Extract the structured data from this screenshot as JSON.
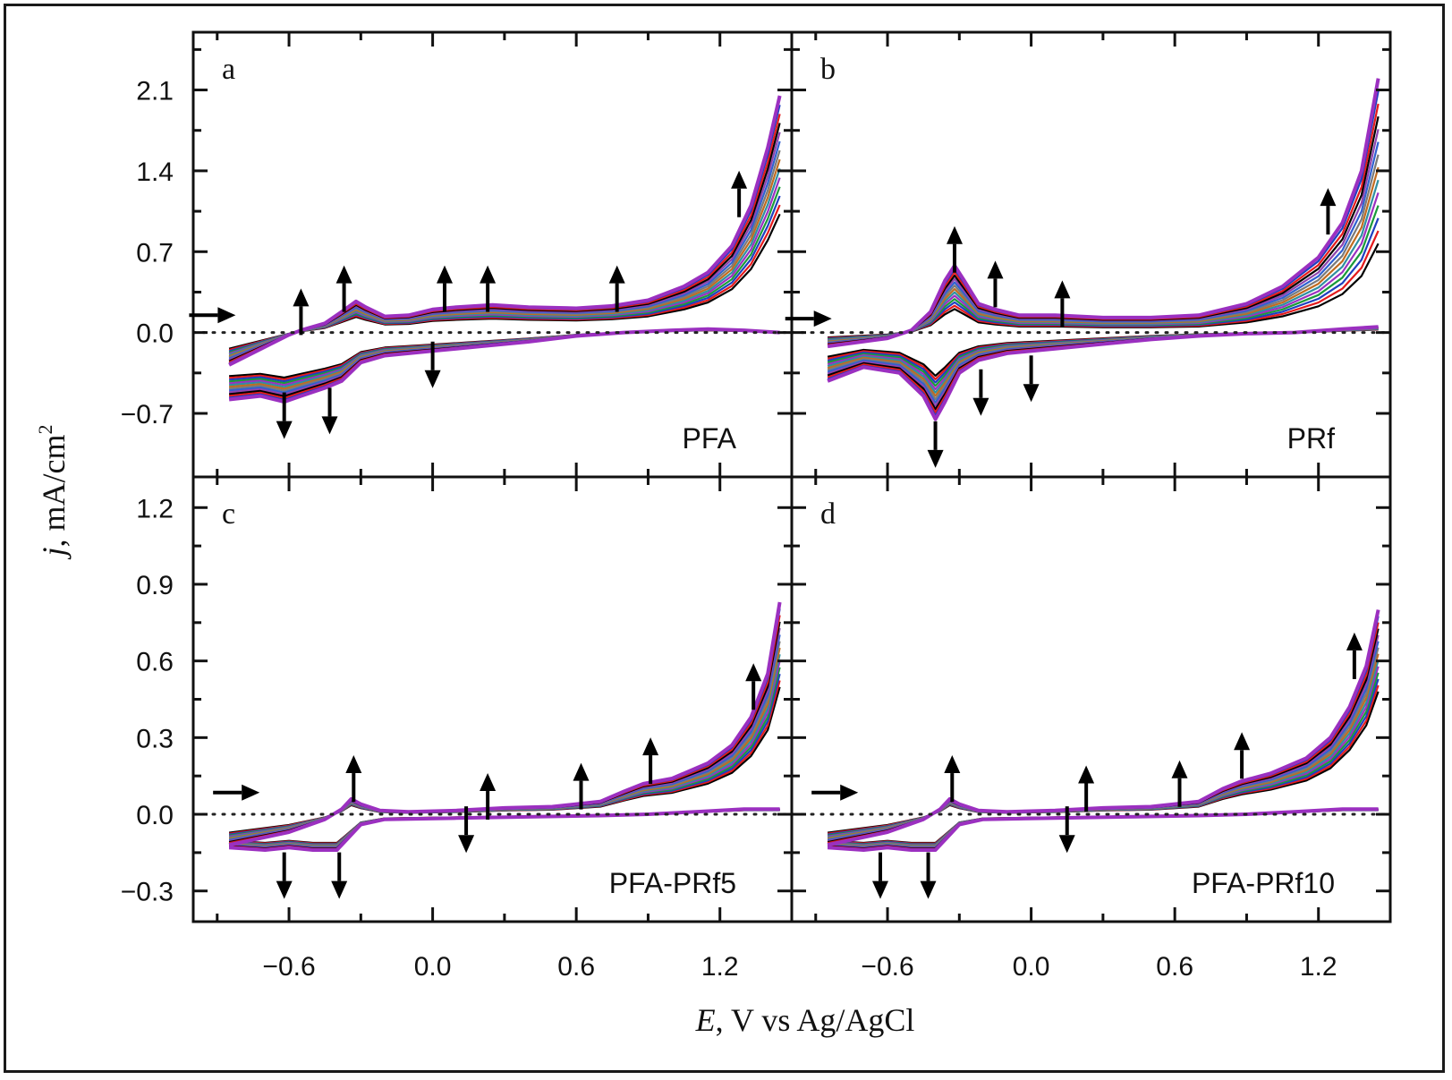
{
  "chart_data": {
    "type": "line",
    "xlabel": {
      "symbol": "E",
      "rest": ", V vs Ag/AgCl"
    },
    "ylabel": {
      "symbol": "j",
      "rest": ", mA/cm",
      "sup": "2"
    },
    "x_ticks": [
      -0.6,
      0.0,
      0.6,
      1.2
    ],
    "x_tick_labels": [
      "−0.6",
      "0.0",
      "0.6",
      "1.2"
    ],
    "xlim": [
      -1.0,
      1.5
    ],
    "series_colors": [
      "#000000",
      "#e41a1c",
      "#1f3fbf",
      "#1a9a3a",
      "#9b30c0",
      "#2f8fa0",
      "#c06b20",
      "#7a7a7a",
      "#3060d0",
      "#8e44ad"
    ],
    "panels": [
      {
        "letter": "a",
        "name": "PFA",
        "ylim": [
          -1.25,
          2.6
        ],
        "y_ticks": [
          -0.7,
          0.0,
          0.7,
          1.4,
          2.1
        ],
        "y_tick_labels": [
          "−0.7",
          "0.0",
          "0.7",
          "1.4",
          "2.1"
        ],
        "baseline": 0.0,
        "n_cycles": 14,
        "anodic": [
          [
            -0.85,
            -0.28
          ],
          [
            -0.6,
            -0.02
          ],
          [
            -0.55,
            0.02
          ],
          [
            -0.45,
            0.08
          ],
          [
            -0.38,
            0.18
          ],
          [
            -0.32,
            0.27
          ],
          [
            -0.28,
            0.22
          ],
          [
            -0.2,
            0.14
          ],
          [
            -0.1,
            0.15
          ],
          [
            0.0,
            0.2
          ],
          [
            0.1,
            0.22
          ],
          [
            0.25,
            0.24
          ],
          [
            0.4,
            0.22
          ],
          [
            0.6,
            0.21
          ],
          [
            0.75,
            0.23
          ],
          [
            0.9,
            0.28
          ],
          [
            1.05,
            0.4
          ],
          [
            1.15,
            0.52
          ],
          [
            1.25,
            0.75
          ],
          [
            1.33,
            1.1
          ],
          [
            1.4,
            1.6
          ],
          [
            1.45,
            2.05
          ]
        ],
        "cathodic": [
          [
            1.45,
            0.0
          ],
          [
            1.3,
            0.02
          ],
          [
            1.15,
            0.03
          ],
          [
            1.0,
            0.02
          ],
          [
            0.8,
            0.0
          ],
          [
            0.6,
            -0.03
          ],
          [
            0.4,
            -0.08
          ],
          [
            0.2,
            -0.12
          ],
          [
            0.0,
            -0.16
          ],
          [
            -0.2,
            -0.2
          ],
          [
            -0.3,
            -0.26
          ],
          [
            -0.38,
            -0.42
          ],
          [
            -0.45,
            -0.48
          ],
          [
            -0.55,
            -0.55
          ],
          [
            -0.62,
            -0.6
          ],
          [
            -0.72,
            -0.55
          ],
          [
            -0.85,
            -0.58
          ]
        ],
        "scale_anodic": [
          0.5,
          1.0
        ],
        "scale_cathodic": [
          0.65,
          1.0
        ],
        "arrows_up": [
          [
            -0.55,
            0.18
          ],
          [
            -0.37,
            0.38
          ],
          [
            0.05,
            0.38
          ],
          [
            0.23,
            0.38
          ],
          [
            0.77,
            0.38
          ],
          [
            1.28,
            1.2
          ]
        ],
        "arrows_down": [
          [
            -0.62,
            -0.72
          ],
          [
            -0.43,
            -0.68
          ],
          [
            0.0,
            -0.28
          ]
        ],
        "arrows_right": [
          [
            -0.92,
            0.15
          ]
        ]
      },
      {
        "letter": "b",
        "name": "PRf",
        "ylim": [
          -1.25,
          2.6
        ],
        "y_ticks": [
          -0.7,
          0.0,
          0.7,
          1.4,
          2.1
        ],
        "y_tick_labels": [
          "",
          "",
          "",
          "",
          ""
        ],
        "baseline": 0.0,
        "n_cycles": 14,
        "anodic": [
          [
            -0.85,
            -0.12
          ],
          [
            -0.6,
            -0.05
          ],
          [
            -0.5,
            0.02
          ],
          [
            -0.42,
            0.18
          ],
          [
            -0.36,
            0.45
          ],
          [
            -0.32,
            0.58
          ],
          [
            -0.28,
            0.45
          ],
          [
            -0.22,
            0.25
          ],
          [
            -0.15,
            0.2
          ],
          [
            -0.05,
            0.15
          ],
          [
            0.1,
            0.15
          ],
          [
            0.3,
            0.13
          ],
          [
            0.5,
            0.13
          ],
          [
            0.7,
            0.15
          ],
          [
            0.9,
            0.25
          ],
          [
            1.05,
            0.4
          ],
          [
            1.2,
            0.65
          ],
          [
            1.3,
            0.95
          ],
          [
            1.38,
            1.4
          ],
          [
            1.45,
            2.2
          ]
        ],
        "cathodic": [
          [
            1.45,
            0.05
          ],
          [
            1.3,
            0.03
          ],
          [
            1.1,
            0.0
          ],
          [
            0.9,
            -0.01
          ],
          [
            0.7,
            -0.03
          ],
          [
            0.5,
            -0.06
          ],
          [
            0.3,
            -0.1
          ],
          [
            0.1,
            -0.14
          ],
          [
            -0.1,
            -0.18
          ],
          [
            -0.22,
            -0.24
          ],
          [
            -0.3,
            -0.35
          ],
          [
            -0.36,
            -0.6
          ],
          [
            -0.4,
            -0.75
          ],
          [
            -0.45,
            -0.55
          ],
          [
            -0.55,
            -0.35
          ],
          [
            -0.7,
            -0.3
          ],
          [
            -0.85,
            -0.42
          ]
        ],
        "scale_anodic": [
          0.35,
          1.0
        ],
        "scale_cathodic": [
          0.5,
          1.0
        ],
        "arrows_up": [
          [
            -0.32,
            0.72
          ],
          [
            -0.15,
            0.42
          ],
          [
            0.13,
            0.25
          ],
          [
            1.24,
            1.05
          ]
        ],
        "arrows_down": [
          [
            -0.4,
            -0.97
          ],
          [
            -0.21,
            -0.52
          ],
          [
            0.0,
            -0.4
          ]
        ],
        "arrows_right": [
          [
            -0.93,
            0.12
          ]
        ]
      },
      {
        "letter": "c",
        "name": "PFA-PRf5",
        "ylim": [
          -0.42,
          1.32
        ],
        "y_ticks": [
          -0.3,
          0.0,
          0.3,
          0.6,
          0.9,
          1.2
        ],
        "y_tick_labels": [
          "−0.3",
          "0.0",
          "0.3",
          "0.6",
          "0.9",
          "1.2"
        ],
        "baseline": 0.0,
        "n_cycles": 14,
        "anodic": [
          [
            -0.85,
            -0.12
          ],
          [
            -0.6,
            -0.07
          ],
          [
            -0.45,
            -0.02
          ],
          [
            -0.38,
            0.02
          ],
          [
            -0.34,
            0.06
          ],
          [
            -0.3,
            0.04
          ],
          [
            -0.22,
            0.015
          ],
          [
            -0.1,
            0.01
          ],
          [
            0.1,
            0.015
          ],
          [
            0.3,
            0.025
          ],
          [
            0.5,
            0.03
          ],
          [
            0.7,
            0.05
          ],
          [
            0.8,
            0.09
          ],
          [
            0.88,
            0.12
          ],
          [
            1.0,
            0.14
          ],
          [
            1.15,
            0.2
          ],
          [
            1.25,
            0.27
          ],
          [
            1.33,
            0.38
          ],
          [
            1.4,
            0.55
          ],
          [
            1.45,
            0.83
          ]
        ],
        "cathodic": [
          [
            1.45,
            0.02
          ],
          [
            1.3,
            0.02
          ],
          [
            1.1,
            0.01
          ],
          [
            0.9,
            0.0
          ],
          [
            0.7,
            -0.005
          ],
          [
            0.4,
            -0.01
          ],
          [
            0.1,
            -0.015
          ],
          [
            -0.2,
            -0.02
          ],
          [
            -0.3,
            -0.04
          ],
          [
            -0.36,
            -0.1
          ],
          [
            -0.4,
            -0.14
          ],
          [
            -0.5,
            -0.14
          ],
          [
            -0.6,
            -0.13
          ],
          [
            -0.7,
            -0.14
          ],
          [
            -0.85,
            -0.13
          ]
        ],
        "scale_anodic": [
          0.6,
          1.0
        ],
        "scale_cathodic": [
          0.8,
          1.0
        ],
        "arrows_up": [
          [
            -0.33,
            0.14
          ],
          [
            0.23,
            0.07
          ],
          [
            0.62,
            0.11
          ],
          [
            0.91,
            0.21
          ],
          [
            1.34,
            0.5
          ]
        ],
        "arrows_down": [
          [
            -0.62,
            -0.24
          ],
          [
            -0.39,
            -0.24
          ],
          [
            0.14,
            -0.06
          ]
        ],
        "arrows_right": [
          [
            -0.82,
            0.085
          ]
        ]
      },
      {
        "letter": "d",
        "name": "PFA-PRf10",
        "ylim": [
          -0.42,
          1.32
        ],
        "y_ticks": [
          -0.3,
          0.0,
          0.3,
          0.6,
          0.9,
          1.2
        ],
        "y_tick_labels": [
          "",
          "",
          "",
          "",
          "",
          ""
        ],
        "baseline": 0.0,
        "n_cycles": 14,
        "anodic": [
          [
            -0.85,
            -0.12
          ],
          [
            -0.6,
            -0.07
          ],
          [
            -0.45,
            -0.02
          ],
          [
            -0.38,
            0.02
          ],
          [
            -0.34,
            0.06
          ],
          [
            -0.3,
            0.04
          ],
          [
            -0.22,
            0.015
          ],
          [
            -0.1,
            0.01
          ],
          [
            0.1,
            0.015
          ],
          [
            0.3,
            0.025
          ],
          [
            0.5,
            0.03
          ],
          [
            0.7,
            0.05
          ],
          [
            0.8,
            0.1
          ],
          [
            0.88,
            0.13
          ],
          [
            1.0,
            0.16
          ],
          [
            1.15,
            0.22
          ],
          [
            1.25,
            0.3
          ],
          [
            1.33,
            0.42
          ],
          [
            1.4,
            0.58
          ],
          [
            1.45,
            0.8
          ]
        ],
        "cathodic": [
          [
            1.45,
            0.02
          ],
          [
            1.3,
            0.02
          ],
          [
            1.1,
            0.01
          ],
          [
            0.9,
            0.0
          ],
          [
            0.7,
            -0.005
          ],
          [
            0.4,
            -0.01
          ],
          [
            0.1,
            -0.015
          ],
          [
            -0.2,
            -0.02
          ],
          [
            -0.3,
            -0.04
          ],
          [
            -0.36,
            -0.1
          ],
          [
            -0.4,
            -0.14
          ],
          [
            -0.5,
            -0.14
          ],
          [
            -0.6,
            -0.13
          ],
          [
            -0.7,
            -0.14
          ],
          [
            -0.85,
            -0.13
          ]
        ],
        "scale_anodic": [
          0.6,
          1.0
        ],
        "scale_cathodic": [
          0.8,
          1.0
        ],
        "arrows_up": [
          [
            -0.33,
            0.14
          ],
          [
            0.23,
            0.1
          ],
          [
            0.62,
            0.12
          ],
          [
            0.88,
            0.23
          ],
          [
            1.35,
            0.62
          ]
        ],
        "arrows_down": [
          [
            -0.63,
            -0.24
          ],
          [
            -0.43,
            -0.24
          ],
          [
            0.15,
            -0.06
          ]
        ],
        "arrows_right": [
          [
            -0.82,
            0.085
          ]
        ]
      }
    ]
  }
}
